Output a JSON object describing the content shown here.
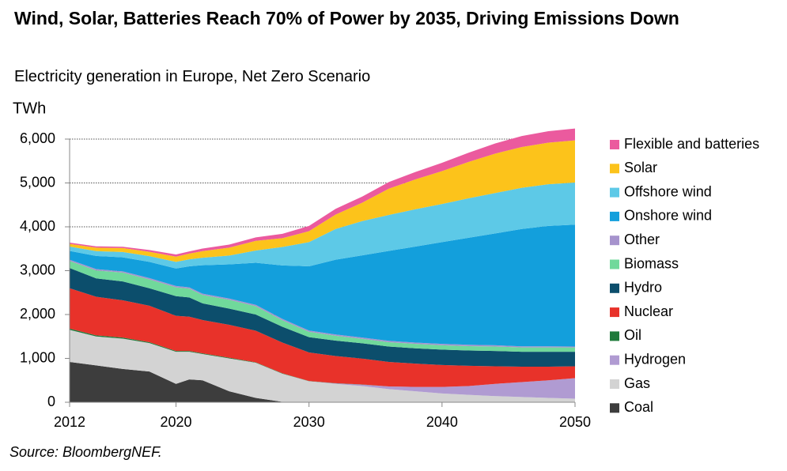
{
  "chart_data": {
    "type": "stacked_area",
    "title": "Wind, Solar, Batteries Reach 70% of Power by 2035, Driving Emissions Down",
    "subtitle": "Electricity generation in Europe, Net Zero Scenario",
    "y_label": "TWh",
    "source": "Source: BloombergNEF.",
    "x": [
      2012,
      2014,
      2016,
      2018,
      2020,
      2021,
      2022,
      2024,
      2026,
      2028,
      2030,
      2032,
      2034,
      2036,
      2038,
      2040,
      2042,
      2044,
      2046,
      2048,
      2050
    ],
    "xlim": [
      2012,
      2050
    ],
    "xticks": [
      2012,
      2020,
      2030,
      2040,
      2050
    ],
    "ylim": [
      0,
      6500
    ],
    "yticks": [
      0,
      {
        "value": 1000,
        "label": "1,000"
      },
      {
        "value": 2000,
        "label": "2,000"
      },
      {
        "value": 3000,
        "label": "3,000"
      },
      {
        "value": 4000,
        "label": "4,000"
      },
      {
        "value": 5000,
        "label": "5,000"
      },
      {
        "value": 6000,
        "label": "6,000"
      }
    ],
    "grid": true,
    "legend": "right",
    "series": [
      {
        "name": "Coal",
        "color": "#3d3d3d",
        "values": [
          920,
          840,
          760,
          700,
          420,
          520,
          500,
          250,
          100,
          10,
          0,
          0,
          0,
          0,
          0,
          0,
          0,
          0,
          0,
          0,
          0
        ]
      },
      {
        "name": "Gas",
        "color": "#d3d3d3",
        "values": [
          730,
          660,
          690,
          650,
          730,
          630,
          600,
          750,
          800,
          640,
          480,
          420,
          370,
          300,
          250,
          200,
          170,
          140,
          120,
          100,
          80
        ]
      },
      {
        "name": "Hydrogen",
        "color": "#b09bd2",
        "values": [
          0,
          0,
          0,
          0,
          0,
          0,
          0,
          0,
          0,
          0,
          0,
          10,
          30,
          60,
          100,
          150,
          200,
          280,
          340,
          400,
          470
        ]
      },
      {
        "name": "Oil",
        "color": "#1f7a3b",
        "values": [
          30,
          25,
          25,
          20,
          20,
          20,
          15,
          15,
          10,
          10,
          5,
          5,
          5,
          0,
          0,
          0,
          0,
          0,
          0,
          0,
          0
        ]
      },
      {
        "name": "Nuclear",
        "color": "#e8322a",
        "values": [
          920,
          880,
          850,
          830,
          800,
          780,
          760,
          750,
          720,
          700,
          650,
          620,
          590,
          560,
          530,
          500,
          460,
          400,
          350,
          310,
          270
        ]
      },
      {
        "name": "Hydro",
        "color": "#0c4e6c",
        "values": [
          460,
          420,
          430,
          400,
          450,
          440,
          380,
          370,
          370,
          360,
          350,
          350,
          350,
          350,
          350,
          350,
          350,
          350,
          340,
          340,
          330
        ]
      },
      {
        "name": "Biomass",
        "color": "#70d99b",
        "values": [
          160,
          180,
          200,
          200,
          200,
          200,
          190,
          200,
          190,
          150,
          120,
          110,
          100,
          100,
          100,
          100,
          100,
          100,
          100,
          100,
          100
        ]
      },
      {
        "name": "Other",
        "color": "#a693cd",
        "values": [
          30,
          30,
          30,
          30,
          30,
          30,
          30,
          30,
          30,
          30,
          30,
          30,
          30,
          30,
          30,
          30,
          30,
          30,
          25,
          25,
          20
        ]
      },
      {
        "name": "Onshore wind",
        "color": "#139fdc",
        "values": [
          200,
          300,
          320,
          370,
          400,
          480,
          650,
          780,
          960,
          1220,
          1465,
          1705,
          1875,
          2050,
          2190,
          2320,
          2440,
          2550,
          2675,
          2745,
          2780
        ]
      },
      {
        "name": "Offshore wind",
        "color": "#5dc9e7",
        "values": [
          100,
          110,
          120,
          130,
          150,
          160,
          170,
          200,
          280,
          420,
          550,
          700,
          780,
          820,
          850,
          870,
          900,
          920,
          940,
          950,
          960
        ]
      },
      {
        "name": "Solar",
        "color": "#fcc31b",
        "values": [
          60,
          80,
          90,
          100,
          120,
          130,
          150,
          180,
          220,
          200,
          250,
          330,
          420,
          600,
          680,
          750,
          830,
          900,
          930,
          950,
          960
        ]
      },
      {
        "name": "Flexible and batteries",
        "color": "#eb5a9e",
        "values": [
          30,
          30,
          30,
          40,
          50,
          50,
          60,
          70,
          80,
          100,
          120,
          130,
          140,
          150,
          170,
          190,
          210,
          230,
          250,
          260,
          270
        ]
      }
    ]
  }
}
